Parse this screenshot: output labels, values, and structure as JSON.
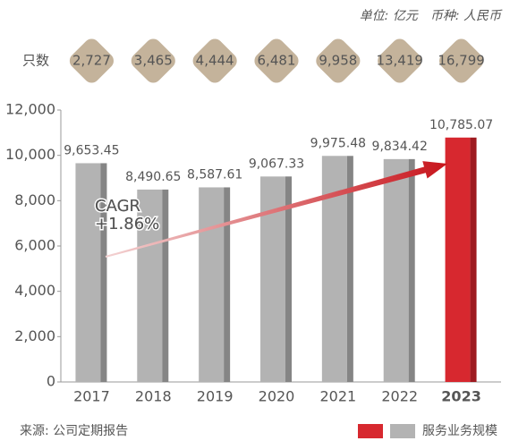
{
  "chart_data": {
    "type": "bar",
    "unit_note": "单位: 亿元　币种: 人民币",
    "count_label": "只数",
    "counts": [
      "2,727",
      "3,465",
      "4,444",
      "6,481",
      "9,958",
      "13,419",
      "16,799"
    ],
    "categories": [
      "2017",
      "2018",
      "2019",
      "2020",
      "2021",
      "2022",
      "2023"
    ],
    "series": [
      {
        "name": "服务业务规模",
        "color": "#b3b3b3",
        "colors": [
          "#b3b3b3",
          "#b3b3b3",
          "#b3b3b3",
          "#b3b3b3",
          "#b3b3b3",
          "#b3b3b3",
          "#d7282f"
        ],
        "values": [
          9653.45,
          8490.65,
          8587.61,
          9067.33,
          9975.48,
          9834.42,
          10785.07
        ],
        "value_labels": [
          "9,653.45",
          "8,490.65",
          "8,587.61",
          "9,067.33",
          "9,975.48",
          "9,834.42",
          "10,785.07"
        ]
      }
    ],
    "legend_colors": [
      "#d7282f",
      "#b3b3b3"
    ],
    "ylim": [
      0,
      12000
    ],
    "yticks": [
      0,
      {
        "value": 2000,
        "label": "2,000"
      },
      {
        "value": 4000,
        "label": "4,000"
      },
      {
        "value": 6000,
        "label": "6,000"
      },
      {
        "value": 8000,
        "label": "8,000"
      },
      {
        "value": 10000,
        "label": "10,000"
      },
      {
        "value": 12000,
        "label": "12,000"
      }
    ],
    "annotation": [
      "CAGR",
      "+1.86%"
    ],
    "source": "来源: 公司定期报告"
  }
}
